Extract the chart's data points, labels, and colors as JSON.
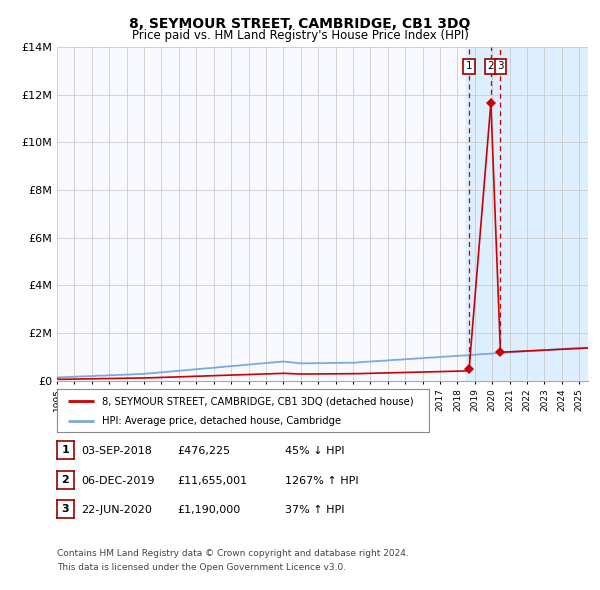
{
  "title": "8, SEYMOUR STREET, CAMBRIDGE, CB1 3DQ",
  "subtitle": "Price paid vs. HM Land Registry's House Price Index (HPI)",
  "hpi_label": "HPI: Average price, detached house, Cambridge",
  "price_label": "8, SEYMOUR STREET, CAMBRIDGE, CB1 3DQ (detached house)",
  "x_start": 1995.0,
  "x_end": 2025.5,
  "ylim": [
    0,
    14000000
  ],
  "yticks": [
    0,
    2000000,
    4000000,
    6000000,
    8000000,
    10000000,
    12000000,
    14000000
  ],
  "ytick_labels": [
    "£0",
    "£2M",
    "£4M",
    "£6M",
    "£8M",
    "£10M",
    "£12M",
    "£14M"
  ],
  "hpi_color": "#7aaadd",
  "price_color": "#cc0000",
  "background_color": "#ffffff",
  "plot_bg_color": "#f8f8ff",
  "shade_color": "#ddeeff",
  "grid_color": "#cccccc",
  "sale_dates": [
    2018.67,
    2019.92,
    2020.47
  ],
  "sale_prices": [
    476225,
    11655001,
    1190000
  ],
  "table_rows": [
    {
      "num": "1",
      "date": "03-SEP-2018",
      "price": "£476,225",
      "pct": "45% ↓ HPI"
    },
    {
      "num": "2",
      "date": "06-DEC-2019",
      "price": "£11,655,001",
      "pct": "1267% ↑ HPI"
    },
    {
      "num": "3",
      "date": "22-JUN-2020",
      "price": "£1,190,000",
      "pct": "37% ↑ HPI"
    }
  ],
  "footnote1": "Contains HM Land Registry data © Crown copyright and database right 2024.",
  "footnote2": "This data is licensed under the Open Government Licence v3.0.",
  "xticks": [
    1995,
    1996,
    1997,
    1998,
    1999,
    2000,
    2001,
    2002,
    2003,
    2004,
    2005,
    2006,
    2007,
    2008,
    2009,
    2010,
    2011,
    2012,
    2013,
    2014,
    2015,
    2016,
    2017,
    2018,
    2019,
    2020,
    2021,
    2022,
    2023,
    2024,
    2025
  ]
}
